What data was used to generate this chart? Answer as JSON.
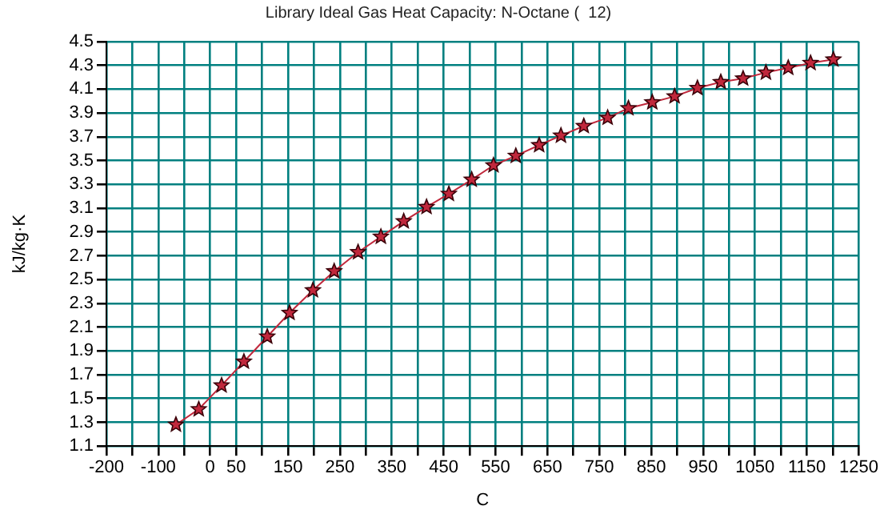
{
  "chart_data": {
    "type": "line",
    "title": "Library Ideal Gas Heat Capacity: N-Octane (  12)",
    "xlabel": "C",
    "ylabel": "kJ/kg·K",
    "x": [
      -66,
      -22,
      22,
      65,
      110,
      153,
      198,
      239,
      285,
      329,
      373,
      417,
      460,
      504,
      546,
      589,
      634,
      676,
      720,
      766,
      806,
      852,
      895,
      939,
      984,
      1027,
      1071,
      1114,
      1157,
      1201
    ],
    "series": [
      {
        "color": "#c0283c",
        "values": [
          1.28,
          1.41,
          1.61,
          1.81,
          2.02,
          2.22,
          2.41,
          2.57,
          2.73,
          2.86,
          2.99,
          3.11,
          3.22,
          3.34,
          3.46,
          3.54,
          3.63,
          3.71,
          3.79,
          3.86,
          3.94,
          3.99,
          4.04,
          4.11,
          4.16,
          4.19,
          4.24,
          4.28,
          4.32,
          4.35
        ]
      }
    ],
    "xlim": [
      -200,
      1250
    ],
    "xticks": [
      -200,
      {
        "value": -150,
        "label": null
      },
      -100,
      {
        "value": -50,
        "label": null
      },
      0,
      50,
      {
        "value": 100,
        "label": null
      },
      150,
      {
        "value": 200,
        "label": null
      },
      250,
      {
        "value": 300,
        "label": null
      },
      350,
      {
        "value": 400,
        "label": null
      },
      450,
      {
        "value": 500,
        "label": null
      },
      550,
      {
        "value": 600,
        "label": null
      },
      650,
      {
        "value": 700,
        "label": null
      },
      750,
      {
        "value": 800,
        "label": null
      },
      850,
      {
        "value": 900,
        "label": null
      },
      950,
      {
        "value": 1000,
        "label": null
      },
      1050,
      {
        "value": 1100,
        "label": null
      },
      1150,
      {
        "value": 1200,
        "label": null
      },
      1250
    ],
    "ylim": [
      1.1,
      4.5
    ],
    "yticks": [
      1.1,
      1.3,
      1.5,
      1.7,
      1.9,
      2.1,
      2.3,
      2.5,
      2.7,
      2.9,
      3.1,
      3.3,
      3.5,
      3.7,
      3.9,
      4.1,
      4.3,
      4.5
    ],
    "grid": true,
    "marker": "star",
    "line_style": "solid",
    "legend": false
  }
}
